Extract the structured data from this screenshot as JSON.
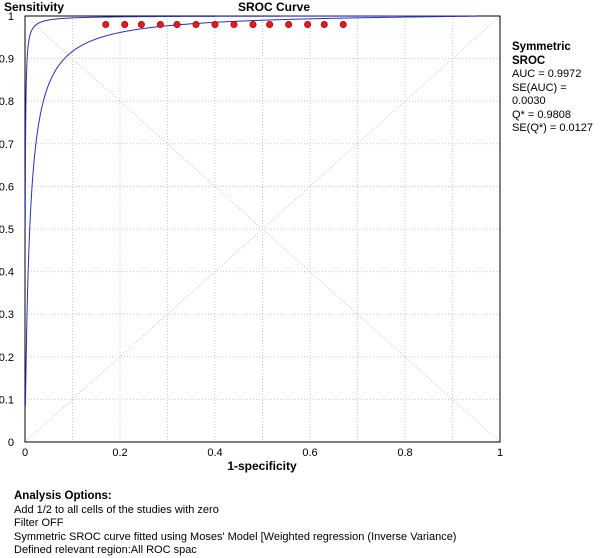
{
  "chart_data": {
    "type": "scatter",
    "title": "SROC Curve",
    "xlabel": "1-specificity",
    "ylabel": "Sensitivity",
    "xlim": [
      0,
      1
    ],
    "ylim": [
      0,
      1
    ],
    "x_ticks": [
      "0",
      "0.2",
      "0.4",
      "0.6",
      "0.8",
      "1"
    ],
    "y_ticks": [
      "0",
      "0.1",
      "0.2",
      "0.3",
      "0.4",
      "0.5",
      "0.6",
      "0.7",
      "0.8",
      "0.9",
      "1"
    ],
    "grid": true,
    "point_color": "#e8191a",
    "curve_color": "#2a2fb8",
    "points": [
      {
        "x": 0.17,
        "y": 0.98
      },
      {
        "x": 0.21,
        "y": 0.98
      },
      {
        "x": 0.245,
        "y": 0.98
      },
      {
        "x": 0.285,
        "y": 0.98
      },
      {
        "x": 0.32,
        "y": 0.98
      },
      {
        "x": 0.36,
        "y": 0.98
      },
      {
        "x": 0.4,
        "y": 0.98
      },
      {
        "x": 0.44,
        "y": 0.98
      },
      {
        "x": 0.48,
        "y": 0.98
      },
      {
        "x": 0.515,
        "y": 0.98
      },
      {
        "x": 0.555,
        "y": 0.98
      },
      {
        "x": 0.595,
        "y": 0.98
      },
      {
        "x": 0.63,
        "y": 0.98
      },
      {
        "x": 0.67,
        "y": 0.98
      }
    ]
  },
  "stats": {
    "heading": "Symmetric SROC",
    "lines": [
      "AUC = 0.9972",
      "SE(AUC) = 0.0030",
      "Q* = 0.9808",
      "SE(Q*) = 0.0127"
    ]
  },
  "options": {
    "heading": "Analysis Options:",
    "lines": [
      "Add 1/2 to all cells of the studies with zero",
      "Filter OFF",
      "Symmetric SROC curve fitted using Moses' Model [Weighted regression (Inverse Variance)",
      "Defined relevant region:All ROC spac"
    ]
  }
}
